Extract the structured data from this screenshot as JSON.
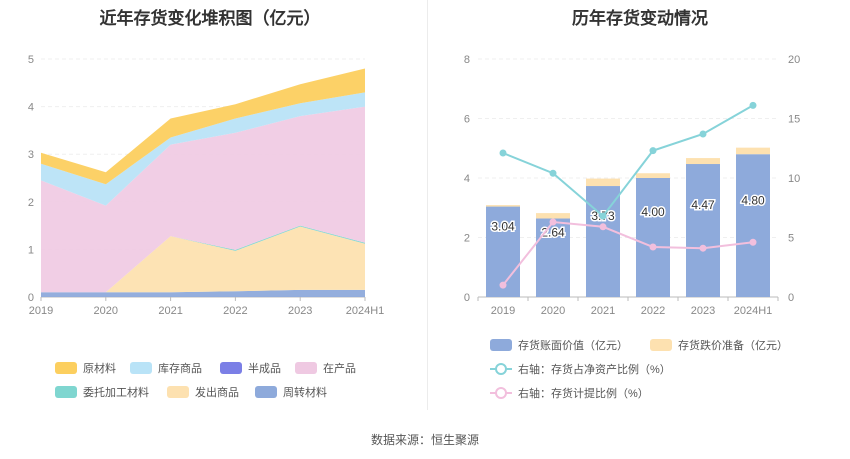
{
  "source_text": "数据来源：恒生聚源",
  "chart_data": [
    {
      "type": "area",
      "stacked": true,
      "title": "近年存货变化堆积图（亿元）",
      "categories": [
        "2019",
        "2020",
        "2021",
        "2022",
        "2023",
        "2024H1"
      ],
      "ylim": [
        0,
        5
      ],
      "y_ticks": [
        "0",
        "1",
        "2",
        "3",
        "4",
        "5"
      ],
      "legend_position": "bottom",
      "series": [
        {
          "name": "周转材料",
          "color": "#8eaadb",
          "values": [
            0.1,
            0.1,
            0.1,
            0.12,
            0.15,
            0.15
          ]
        },
        {
          "name": "发出商品",
          "color": "#fde1b0",
          "values": [
            0.0,
            0.0,
            1.18,
            0.85,
            1.33,
            0.97
          ]
        },
        {
          "name": "委托加工材料",
          "color": "#7fd6d0",
          "values": [
            0.0,
            0.0,
            0.0,
            0.02,
            0.02,
            0.02
          ]
        },
        {
          "name": "在产品",
          "color": "#efc9e2",
          "values": [
            2.35,
            1.82,
            1.92,
            2.46,
            2.3,
            2.86
          ]
        },
        {
          "name": "半成品",
          "color": "#7b7fe6",
          "values": [
            0.0,
            0.0,
            0.0,
            0.0,
            0.0,
            0.0
          ]
        },
        {
          "name": "库存商品",
          "color": "#b9e3f7",
          "values": [
            0.35,
            0.45,
            0.15,
            0.3,
            0.27,
            0.3
          ]
        },
        {
          "name": "原材料",
          "color": "#fccf5f",
          "values": [
            0.23,
            0.25,
            0.4,
            0.3,
            0.4,
            0.5
          ]
        }
      ],
      "legend_order": [
        "原材料",
        "库存商品",
        "半成品",
        "在产品",
        "委托加工材料",
        "发出商品",
        "周转材料"
      ]
    },
    {
      "type": "bar",
      "title": "历年存货变动情况",
      "categories": [
        "2019",
        "2020",
        "2021",
        "2022",
        "2023",
        "2024H1"
      ],
      "ylim": [
        0,
        8
      ],
      "y_ticks": [
        "0",
        "2",
        "4",
        "6",
        "8"
      ],
      "y2lim": [
        0,
        20
      ],
      "y2_ticks": [
        "0",
        "5",
        "10",
        "15",
        "20"
      ],
      "legend_position": "bottom",
      "series": [
        {
          "name": "存货账面价值（亿元）",
          "color": "#8eaadb",
          "axis": "left",
          "kind": "bar",
          "values": [
            3.04,
            2.64,
            3.73,
            4.0,
            4.47,
            4.8
          ],
          "labels": [
            "3.04",
            "2.64",
            "3.73",
            "4.00",
            "4.47",
            "4.80"
          ]
        },
        {
          "name": "存货跌价准备（亿元）",
          "color": "#fde1b0",
          "axis": "left",
          "kind": "bar-stack",
          "values": [
            0.05,
            0.18,
            0.25,
            0.16,
            0.2,
            0.22
          ]
        },
        {
          "name": "右轴：存货占净资产比例（%）",
          "color": "#86d3d9",
          "axis": "right",
          "kind": "line",
          "values": [
            12.1,
            10.4,
            6.8,
            12.3,
            13.7,
            16.1
          ]
        },
        {
          "name": "右轴：存货计提比例（%）",
          "color": "#f2bfdd",
          "axis": "right",
          "kind": "line",
          "values": [
            1.0,
            6.3,
            5.9,
            4.2,
            4.1,
            4.6
          ]
        }
      ]
    }
  ]
}
